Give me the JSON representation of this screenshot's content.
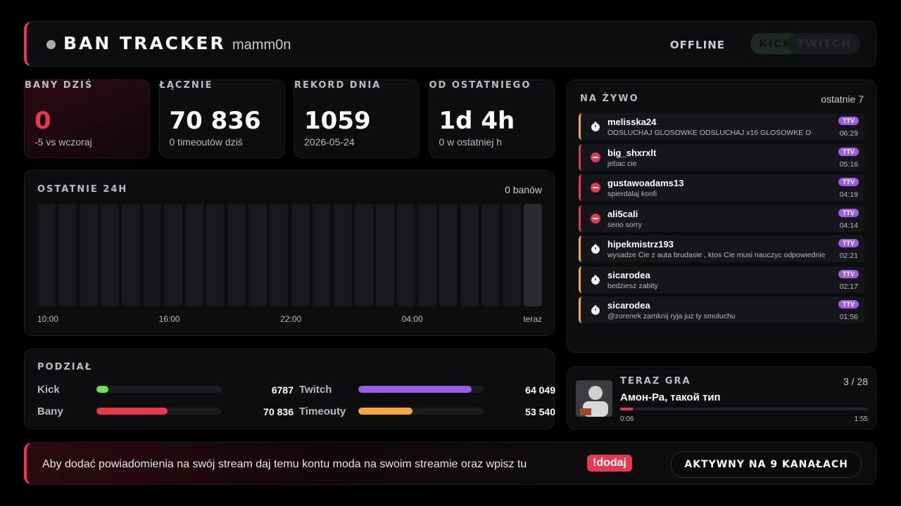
{
  "header": {
    "title": "BAN TRACKER",
    "channel": "mamm0n",
    "status": "OFFLINE",
    "buttons": [
      "KICK",
      "TWITCH"
    ]
  },
  "stats": [
    {
      "label": "BANY DZIŚ",
      "value": "0",
      "sub": "-5 vs wczoraj"
    },
    {
      "label": "ŁĄCZNIE",
      "value": "70 836",
      "sub": "0 timeoutów dziś"
    },
    {
      "label": "REKORD DNIA",
      "value": "1059",
      "sub": "2026-05-24"
    },
    {
      "label": "OD OSTATNIEGO",
      "value": "1d 4h",
      "sub": "0 w ostatniej h"
    }
  ],
  "last24h": {
    "title": "OSTATNIE 24H",
    "summary": "0 banów",
    "values": [
      0,
      0,
      0,
      0,
      0,
      0,
      0,
      0,
      0,
      0,
      0,
      0,
      0,
      0,
      0,
      0,
      0,
      0,
      0,
      0,
      0,
      0,
      0,
      0
    ],
    "time_labels": [
      "10:00",
      "16:00",
      "22:00",
      "04:00",
      "teraz"
    ]
  },
  "split": {
    "title": "PODZIAŁ",
    "rows": [
      {
        "items": [
          {
            "label": "Kick",
            "value": 6787,
            "color": "#6ee04a"
          },
          {
            "label": "Twitch",
            "value": {
              "value": 64049,
              "label": "64 049"
            },
            "color": "#9b5de5"
          }
        ]
      },
      {
        "items": [
          {
            "label": "Bany",
            "value": {
              "value": 70836,
              "label": "70 836"
            },
            "color": "#e8384f"
          },
          {
            "label": "Timeouty",
            "value": {
              "value": 53540,
              "label": "53 540"
            },
            "color": "#f5a83c"
          }
        ]
      }
    ]
  },
  "live": {
    "title": "NA ŻYWO",
    "subtitle": "ostatnie 7",
    "items": [
      {
        "type": "timeout",
        "user": "melisska24",
        "message": "ODSLUCHAJ GLOSOWKE ODSLUCHAJ x16 GLOSOWKE O",
        "badge": "TTV",
        "time": "06:29"
      },
      {
        "type": "ban",
        "user": "big_shxrxlt",
        "message": "jebac cie",
        "badge": "TTV",
        "time": "05:16"
      },
      {
        "type": "ban",
        "user": "gustawoadams13",
        "message": "spierdalaj konfi",
        "badge": "TTV",
        "time": "04:19"
      },
      {
        "type": "ban",
        "user": "ali5cali",
        "message": "serio sorry",
        "badge": "TTV",
        "time": "04:14"
      },
      {
        "type": "timeout",
        "user": "hipekmistrz193",
        "message": "wysadze Cie z auta brudasie , ktos Cie musi nauczyc odpowiedniej",
        "badge": "TTV",
        "time": "02:21"
      },
      {
        "type": "timeout",
        "user": "sicarodea",
        "message": "bedziesz zabity",
        "badge": "TTV",
        "time": "02:17"
      },
      {
        "type": "timeout",
        "user": "sicarodea",
        "message": "@zorenek zamknij ryja juz ty smoluchu",
        "badge": "TTV",
        "time": "01:56"
      }
    ]
  },
  "now_playing": {
    "title": "TERAZ GRA",
    "position": "3 / 28",
    "track": "Амон-Ра, такой тип",
    "elapsed": {
      "value": 6,
      "label": "0:06"
    },
    "duration": {
      "value": 115,
      "label": "1:55"
    }
  },
  "footer": {
    "message": "Aby dodać powiadomienia na swój stream daj temu kontu moda na swoim streamie oraz wpisz tu",
    "command": "!dodaj",
    "channels": "AKTYWNY NA 9 KANAŁACH"
  }
}
